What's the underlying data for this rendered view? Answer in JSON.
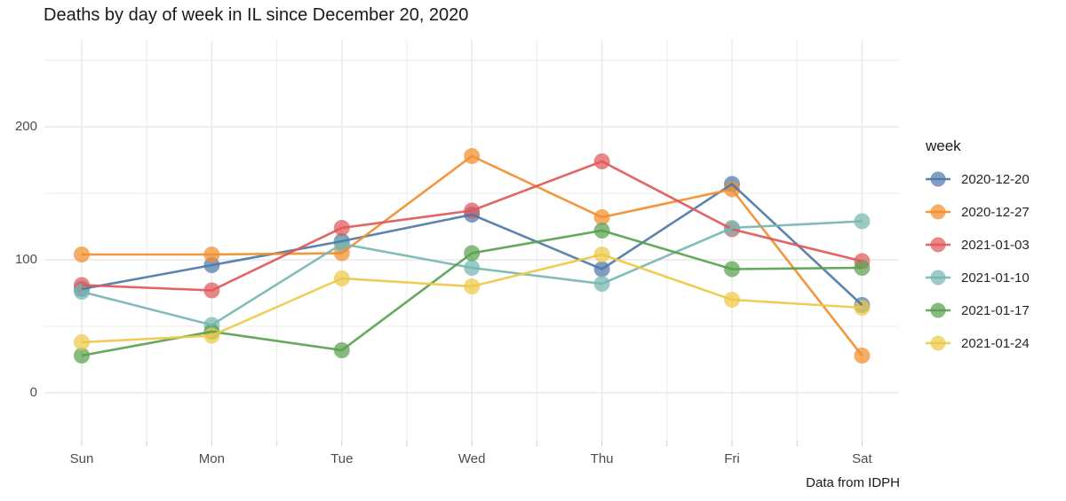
{
  "chart_data": {
    "type": "line",
    "title": "Deaths by day of week in IL since December 20, 2020",
    "caption": "Data from IDPH",
    "xlabel": "",
    "ylabel": "",
    "categories": [
      "Sun",
      "Mon",
      "Tue",
      "Wed",
      "Thu",
      "Fri",
      "Sat"
    ],
    "yticks_major": [
      0,
      100,
      200
    ],
    "yticks_minor": [
      50,
      150,
      250
    ],
    "ylim": [
      -35,
      265
    ],
    "grid": true,
    "marker": "circle",
    "legend_title": "week",
    "legend_position": "right",
    "series": [
      {
        "name": "2020-12-20",
        "color": "#4e79a7",
        "values": [
          78,
          96,
          114,
          134,
          93,
          157,
          66
        ]
      },
      {
        "name": "2020-12-27",
        "color": "#f28e2c",
        "values": [
          104,
          104,
          105,
          178,
          132,
          153,
          28
        ]
      },
      {
        "name": "2021-01-03",
        "color": "#e15759",
        "values": [
          81,
          77,
          124,
          137,
          174,
          123,
          99
        ]
      },
      {
        "name": "2021-01-10",
        "color": "#76b7b2",
        "values": [
          76,
          51,
          112,
          94,
          82,
          124,
          129
        ]
      },
      {
        "name": "2021-01-17",
        "color": "#59a14f",
        "values": [
          28,
          46,
          32,
          105,
          122,
          93,
          94
        ]
      },
      {
        "name": "2021-01-24",
        "color": "#edc948",
        "values": [
          38,
          43,
          86,
          80,
          104,
          70,
          64
        ]
      }
    ],
    "style": {
      "grid_color": "#ebebeb",
      "tick_color": "#d9d9d9",
      "axis_text_color": "#4d4d4d",
      "point_opacity": 0.72,
      "line_opacity": 0.92
    }
  }
}
